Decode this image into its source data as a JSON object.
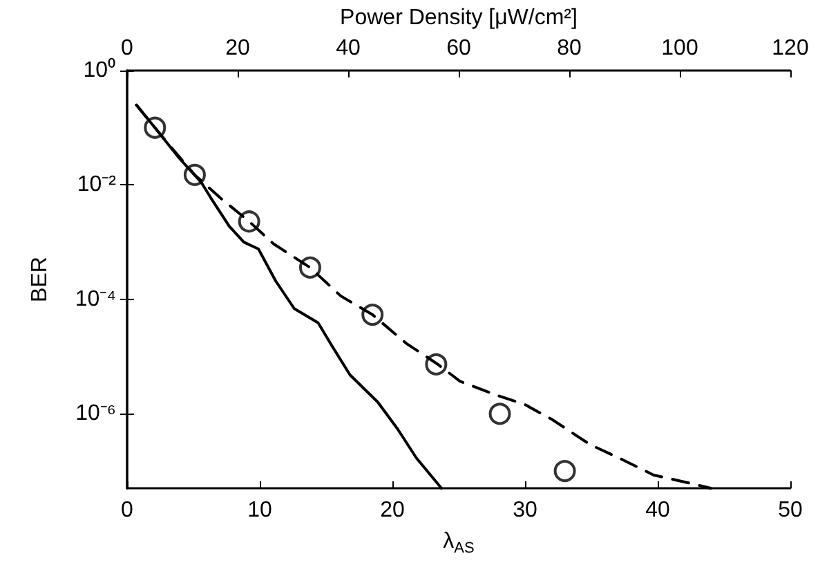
{
  "chart_data": {
    "type": "line",
    "xlabel": "λ$_{AS}$",
    "ylabel": "BER",
    "x2label": "Power Density [μW/cm²]",
    "log": "y",
    "grid": false,
    "xlim": [
      0,
      50
    ],
    "xticks": [
      0,
      10,
      20,
      30,
      40,
      50
    ],
    "x2lim": [
      0,
      120
    ],
    "x2ticks": [
      0,
      20,
      40,
      60,
      80,
      100,
      120
    ],
    "ylim": [
      5e-08,
      1
    ],
    "yticks": [
      {
        "value": 1,
        "label": "10⁰"
      },
      {
        "value": 0.01,
        "label": "10⁻²"
      },
      {
        "value": 0.0001,
        "label": "10⁻⁴"
      },
      {
        "value": 1e-06,
        "label": "10⁻⁶"
      }
    ],
    "series": [
      {
        "color": "#000000",
        "line_style": "solid",
        "marker": "none",
        "x": [
          0.7,
          2.1,
          3.9,
          5.6,
          6.3,
          7.7,
          8.8,
          9.9,
          11.2,
          12.6,
          14.4,
          15.4,
          16.8,
          18.9,
          20.4,
          21.8,
          23.7
        ],
        "values": [
          0.25,
          0.1,
          0.03,
          0.011,
          0.006,
          0.0019,
          0.001,
          0.00076,
          0.00021,
          6.9e-05,
          3.9e-05,
          1.6e-05,
          4.8e-06,
          1.6e-06,
          5.4e-07,
          1.7e-07,
          5e-08
        ]
      },
      {
        "color": "#000000",
        "line_style": "dashed",
        "marker": "none",
        "x": [
          0.7,
          3.2,
          5.1,
          7.0,
          9.2,
          11.05,
          13.8,
          16.1,
          18.5,
          21.05,
          23.4,
          25.1,
          27.9,
          30.0,
          32.1,
          34.9,
          37.3,
          39.7,
          42.2,
          44.0
        ],
        "values": [
          0.25,
          0.049,
          0.015,
          0.006,
          0.0023,
          0.00093,
          0.00036,
          0.000115,
          5.4e-05,
          1.7e-05,
          7.4e-06,
          3.7e-06,
          2.1e-06,
          1.45e-06,
          7.8e-07,
          2.9e-07,
          1.6e-07,
          8.5e-08,
          6.3e-08,
          5e-08
        ]
      },
      {
        "type": "scatter",
        "color": "#000000",
        "marker": "circle",
        "x": [
          2.1,
          5.1,
          9.2,
          13.8,
          18.5,
          23.3,
          28.1,
          33.0
        ],
        "values": [
          0.1,
          0.015,
          0.0023,
          0.00036,
          5.4e-05,
          7.3e-06,
          1e-06,
          1e-07
        ]
      }
    ]
  }
}
